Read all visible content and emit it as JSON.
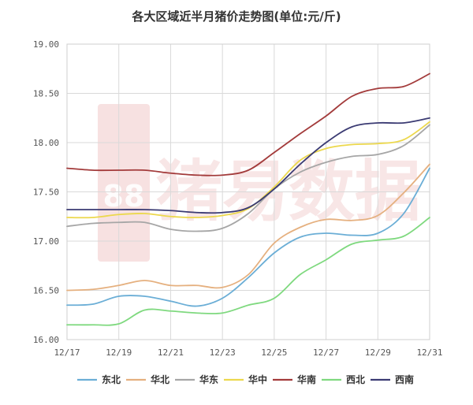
{
  "chart_data": {
    "type": "line",
    "title": "各大区域近半月猪价走势图(单位:元/斤)",
    "xlabel": "",
    "ylabel": "",
    "x_tick_labels": [
      "12/17",
      "12/19",
      "12/21",
      "12/23",
      "12/25",
      "12/27",
      "12/29",
      "12/31"
    ],
    "y_tick_labels": [
      "16.00",
      "16.50",
      "17.00",
      "17.50",
      "18.00",
      "18.50",
      "19.00"
    ],
    "x_index_range": [
      0,
      14
    ],
    "ylim": [
      16.0,
      19.0
    ],
    "y_ticks": [
      16.0,
      16.5,
      17.0,
      17.5,
      18.0,
      18.5,
      19.0
    ],
    "grid": true,
    "legend_position": "bottom",
    "series": [
      {
        "name": "东北",
        "color": "#6baed6",
        "values": [
          16.35,
          16.36,
          16.44,
          16.44,
          16.39,
          16.34,
          16.42,
          16.63,
          16.88,
          17.04,
          17.08,
          17.06,
          17.08,
          17.28,
          17.74
        ]
      },
      {
        "name": "华北",
        "color": "#e5b07f",
        "values": [
          16.5,
          16.51,
          16.55,
          16.6,
          16.55,
          16.55,
          16.53,
          16.66,
          16.98,
          17.14,
          17.22,
          17.21,
          17.26,
          17.49,
          17.78
        ]
      },
      {
        "name": "华东",
        "color": "#a6a6a6",
        "values": [
          17.15,
          17.18,
          17.19,
          17.19,
          17.12,
          17.1,
          17.13,
          17.28,
          17.53,
          17.7,
          17.8,
          17.86,
          17.88,
          17.97,
          18.18
        ]
      },
      {
        "name": "华中",
        "color": "#ecd84d",
        "values": [
          17.24,
          17.24,
          17.27,
          17.28,
          17.25,
          17.24,
          17.26,
          17.33,
          17.55,
          17.82,
          17.94,
          17.98,
          17.99,
          18.03,
          18.21
        ]
      },
      {
        "name": "华南",
        "color": "#a33b3b",
        "values": [
          17.74,
          17.72,
          17.72,
          17.72,
          17.69,
          17.67,
          17.67,
          17.72,
          17.9,
          18.09,
          18.27,
          18.47,
          18.55,
          18.57,
          18.7
        ]
      },
      {
        "name": "西北",
        "color": "#7fd97f",
        "values": [
          16.15,
          16.15,
          16.16,
          16.3,
          16.29,
          16.27,
          16.27,
          16.35,
          16.42,
          16.66,
          16.81,
          16.97,
          17.01,
          17.05,
          17.24
        ]
      },
      {
        "name": "西南",
        "color": "#3b3b73",
        "values": [
          17.32,
          17.32,
          17.32,
          17.32,
          17.31,
          17.29,
          17.29,
          17.34,
          17.53,
          17.78,
          18.0,
          18.16,
          18.2,
          18.2,
          18.25
        ]
      }
    ]
  },
  "watermark": {
    "text": "猪易数据",
    "logo_text": "88",
    "color": "#e9a9a9"
  }
}
